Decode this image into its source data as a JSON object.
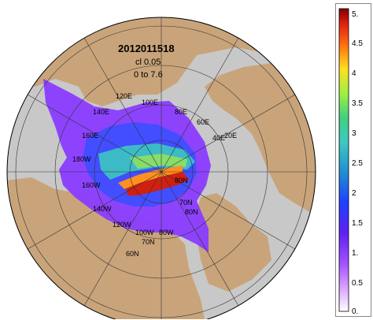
{
  "map": {
    "title": "2012011518",
    "contour_interval": "cl 0.05",
    "range": "0 to 7.6",
    "projection": "north-polar-stereographic",
    "land_color": "#c9a47a",
    "ocean_color": "#c8c8c8",
    "lon_labels": [
      "120E",
      "100E",
      "140E",
      "160E",
      "80E",
      "60E",
      "40E",
      "20E",
      "180W",
      "160W",
      "140W",
      "120W",
      "100W",
      "80W",
      "60N",
      "70N",
      "80N",
      "70N",
      "80N"
    ]
  },
  "colorbar": {
    "ticks": [
      "5.",
      "4.5",
      "4",
      "3.5",
      "3",
      "2.5",
      "2",
      "1.5",
      "1.",
      "0.5",
      "0."
    ],
    "stops": [
      "#ffffff",
      "#c080ff",
      "#8000ff",
      "#3040ff",
      "#2090d0",
      "#40d0c0",
      "#60e080",
      "#b0f040",
      "#ffd020",
      "#ff6010",
      "#c00000"
    ]
  }
}
